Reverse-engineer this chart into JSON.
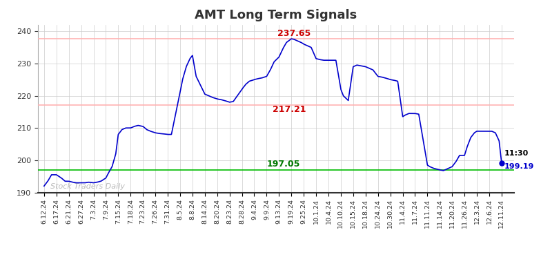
{
  "title": "AMT Long Term Signals",
  "ylim": [
    190,
    242
  ],
  "yticks": [
    190,
    200,
    210,
    220,
    230,
    240
  ],
  "hline_red_upper": 237.65,
  "hline_red_lower": 217.21,
  "hline_green": 197.05,
  "label_red_upper": "237.65",
  "label_red_lower": "217.21",
  "label_green": "197.05",
  "end_label_time": "11:30",
  "end_label_price": "199.19",
  "watermark": "Stock Traders Daily",
  "line_color": "#0000cc",
  "hline_red_color": "#ffb3b3",
  "hline_green_color": "#00bb00",
  "background_color": "#ffffff",
  "grid_color": "#cccccc",
  "title_color": "#333333",
  "x_labels": [
    "6.12.24",
    "6.17.24",
    "6.21.24",
    "6.27.24",
    "7.3.24",
    "7.9.24",
    "7.15.24",
    "7.18.24",
    "7.23.24",
    "7.26.24",
    "7.31.24",
    "8.5.24",
    "8.8.24",
    "8.14.24",
    "8.20.24",
    "8.23.24",
    "8.28.24",
    "9.4.24",
    "9.9.24",
    "9.13.24",
    "9.19.24",
    "9.25.24",
    "10.1.24",
    "10.4.24",
    "10.10.24",
    "10.15.24",
    "10.18.24",
    "10.24.24",
    "10.30.24",
    "11.4.24",
    "11.7.24",
    "11.11.24",
    "11.14.24",
    "11.20.24",
    "11.26.24",
    "12.3.24",
    "12.6.24",
    "12.11.24"
  ],
  "xk": [
    0,
    0.3,
    0.6,
    1,
    1.4,
    1.7,
    2,
    2.3,
    2.6,
    3,
    3.3,
    3.6,
    4,
    4.3,
    4.6,
    5,
    5.2,
    5.5,
    5.8,
    6,
    6.3,
    6.6,
    7,
    7.3,
    7.6,
    8,
    8.3,
    8.6,
    9,
    9.3,
    9.6,
    10,
    10.3,
    11,
    11.2,
    11.5,
    11.8,
    12,
    12.3,
    13,
    13.3,
    13.6,
    14,
    14.3,
    14.6,
    15,
    15.3,
    16,
    16.3,
    16.6,
    17,
    17.3,
    17.6,
    18,
    18.3,
    18.6,
    19,
    19.3,
    19.6,
    20,
    20.2,
    20.5,
    20.8,
    21,
    21.3,
    21.6,
    22,
    22.3,
    22.6,
    23,
    23.3,
    23.6,
    24,
    24.2,
    24.6,
    25,
    25.3,
    25.6,
    26,
    26.3,
    26.6,
    27,
    27.3,
    27.6,
    28,
    28.3,
    28.6,
    29,
    29.2,
    29.5,
    29.8,
    30,
    30.3,
    31,
    31.2,
    31.5,
    31.8,
    32,
    32.3,
    33,
    33.3,
    33.6,
    34,
    34.2,
    34.5,
    34.8,
    35,
    35.3,
    35.6,
    36,
    36.2,
    36.5,
    36.8,
    37
  ],
  "yk": [
    192.0,
    193.5,
    195.5,
    195.5,
    194.5,
    193.5,
    193.5,
    193.2,
    193.0,
    193.0,
    193.0,
    193.2,
    193.0,
    193.2,
    193.5,
    194.5,
    196.0,
    198.0,
    202.0,
    208.0,
    209.5,
    210.0,
    210.0,
    210.5,
    210.8,
    210.5,
    209.5,
    209.0,
    208.5,
    208.3,
    208.2,
    208.0,
    208.0,
    221.0,
    225.0,
    229.0,
    231.5,
    232.5,
    226.0,
    220.5,
    220.0,
    219.5,
    219.0,
    218.8,
    218.5,
    218.0,
    218.2,
    222.0,
    223.5,
    224.5,
    225.0,
    225.3,
    225.5,
    226.0,
    228.0,
    230.5,
    232.0,
    234.5,
    236.5,
    237.65,
    237.5,
    237.0,
    236.5,
    236.0,
    235.5,
    235.0,
    231.5,
    231.2,
    231.0,
    231.0,
    231.0,
    231.0,
    222.0,
    220.0,
    218.5,
    229.0,
    229.5,
    229.3,
    229.0,
    228.5,
    228.0,
    226.0,
    225.8,
    225.5,
    225.0,
    224.8,
    224.5,
    213.5,
    214.0,
    214.5,
    214.5,
    214.5,
    214.3,
    198.5,
    198.0,
    197.5,
    197.2,
    197.0,
    196.8,
    198.0,
    199.5,
    201.5,
    201.5,
    204.0,
    207.0,
    208.5,
    209.0,
    209.0,
    209.0,
    209.0,
    209.0,
    208.5,
    206.0,
    199.19
  ]
}
